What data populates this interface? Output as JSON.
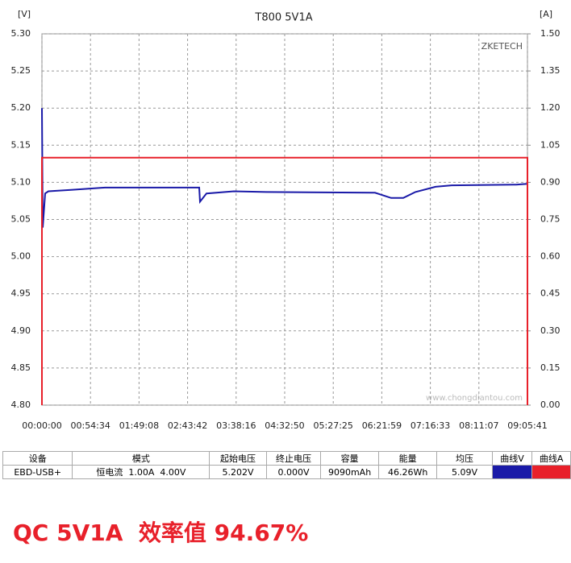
{
  "chart_data": {
    "type": "line",
    "title": "T800 5V1A",
    "y_label": "[V]",
    "y2_label": "[A]",
    "watermark": "ZKETECH",
    "logo_url": "www.chongdiantou.com",
    "xlim": [
      0,
      32741
    ],
    "ylim": [
      4.8,
      5.3
    ],
    "y2lim": [
      0,
      1.5
    ],
    "grid": true,
    "xticks": [
      {
        "value": 0,
        "label": "00:00:00"
      },
      {
        "value": 3274,
        "label": "00:54:34"
      },
      {
        "value": 6548,
        "label": "01:49:08"
      },
      {
        "value": 9822,
        "label": "02:43:42"
      },
      {
        "value": 13096,
        "label": "03:38:16"
      },
      {
        "value": 16370,
        "label": "04:32:50"
      },
      {
        "value": 19645,
        "label": "05:27:25"
      },
      {
        "value": 22919,
        "label": "06:21:59"
      },
      {
        "value": 26193,
        "label": "07:16:33"
      },
      {
        "value": 29467,
        "label": "08:11:07"
      },
      {
        "value": 32741,
        "label": "09:05:41"
      }
    ],
    "yticks": [
      {
        "value": 4.8,
        "label": "4.80"
      },
      4.85,
      {
        "value": 4.9,
        "label": "4.90"
      },
      4.95,
      {
        "value": 5.0,
        "label": "5.00"
      },
      5.05,
      {
        "value": 5.1,
        "label": "5.10"
      },
      5.15,
      {
        "value": 5.2,
        "label": "5.20"
      },
      5.25,
      {
        "value": 5.3,
        "label": "5.30"
      }
    ],
    "y2ticks": [
      {
        "value": 0,
        "label": "0.00"
      },
      0.15,
      {
        "value": 0.3,
        "label": "0.30"
      },
      0.45,
      {
        "value": 0.6,
        "label": "0.60"
      },
      0.75,
      {
        "value": 0.9,
        "label": "0.90"
      },
      1.05,
      {
        "value": 1.2,
        "label": "1.20"
      },
      1.35,
      {
        "value": 1.5,
        "label": "1.50"
      }
    ],
    "series": [
      {
        "name": "曲线V",
        "color": "#1a1aa8",
        "x": [
          0,
          54,
          218,
          435,
          2067,
          4242,
          10605,
          10660,
          11095,
          12944,
          15120,
          22462,
          23550,
          24366,
          25181,
          26541,
          27629,
          31980,
          32741,
          32741
        ],
        "values": [
          5.2,
          5.039,
          5.085,
          5.088,
          5.09,
          5.093,
          5.093,
          5.074,
          5.085,
          5.088,
          5.087,
          5.086,
          5.079,
          5.079,
          5.087,
          5.094,
          5.096,
          5.097,
          5.098,
          4.8
        ]
      },
      {
        "name": "曲线A",
        "color": "#e8202a",
        "axis": "y2",
        "x": [
          0,
          0,
          32741,
          32741
        ],
        "values": [
          0,
          1.0,
          1.0,
          0
        ]
      }
    ]
  },
  "table": {
    "headers": [
      "设备",
      "模式",
      "起始电压",
      "终止电压",
      "容量",
      "能量",
      "均压",
      "曲线V",
      "曲线A"
    ],
    "row": [
      "EBD-USB+",
      "恒电流  1.00A  4.00V",
      "5.202V",
      "0.000V",
      "9090mAh",
      "46.26Wh",
      "5.09V"
    ]
  },
  "caption": "QC 5V1A  效率值 94.67%"
}
